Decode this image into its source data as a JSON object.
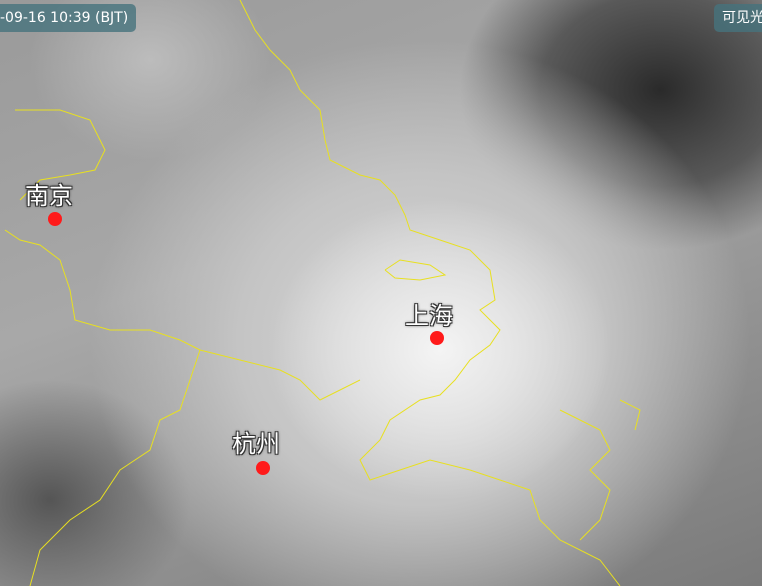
{
  "timestamp": "-09-16 10:39 (BJT)",
  "image_type": "可见光",
  "coastline_color": "#e8e020",
  "marker_color": "#ff1a1a",
  "cities": [
    {
      "name": "南京"
    },
    {
      "name": "上海"
    },
    {
      "name": "杭州"
    }
  ]
}
